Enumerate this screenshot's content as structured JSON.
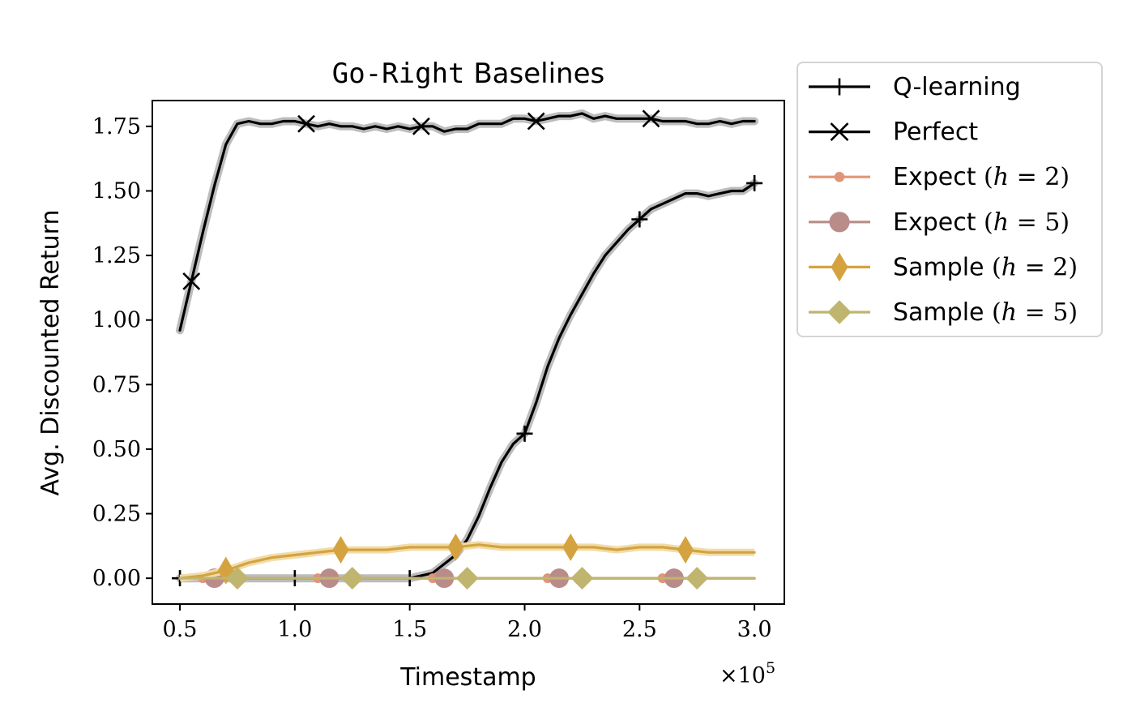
{
  "chart_data": {
    "type": "line",
    "title": {
      "code": "Go-Right",
      "rest": " Baselines"
    },
    "xlabel": "Timestamp",
    "ylabel": "Avg. Discounted Return",
    "x_multiplier": {
      "base": "×10",
      "exp": "5"
    },
    "xlim": [
      0.38,
      3.13
    ],
    "ylim": [
      -0.1,
      1.85
    ],
    "xticks": [
      0.5,
      1.0,
      1.5,
      2.0,
      2.5,
      3.0
    ],
    "xtick_labels": [
      "0.5",
      "1.0",
      "1.5",
      "2.0",
      "2.5",
      "3.0"
    ],
    "yticks": [
      0.0,
      0.25,
      0.5,
      0.75,
      1.0,
      1.25,
      1.5,
      1.75
    ],
    "ytick_labels": [
      "0.00",
      "0.25",
      "0.50",
      "0.75",
      "1.00",
      "1.25",
      "1.50",
      "1.75"
    ],
    "grid": false,
    "legend_position": "outside-top-right",
    "series": [
      {
        "name": "Q-learning",
        "color": "#000000",
        "marker": "plus",
        "x": [
          0.5,
          1.0,
          1.5,
          1.6,
          1.7,
          1.75,
          1.8,
          1.85,
          1.9,
          1.95,
          2.0,
          2.05,
          2.1,
          2.15,
          2.2,
          2.25,
          2.3,
          2.35,
          2.4,
          2.45,
          2.5,
          2.55,
          2.6,
          2.65,
          2.7,
          2.75,
          2.8,
          2.85,
          2.9,
          2.95,
          3.0
        ],
        "y": [
          0.0,
          0.0,
          0.0,
          0.02,
          0.09,
          0.15,
          0.24,
          0.35,
          0.45,
          0.52,
          0.56,
          0.68,
          0.82,
          0.93,
          1.02,
          1.1,
          1.18,
          1.25,
          1.3,
          1.35,
          1.39,
          1.43,
          1.45,
          1.47,
          1.49,
          1.49,
          1.48,
          1.49,
          1.5,
          1.5,
          1.53
        ],
        "marker_x": [
          0.5,
          1.0,
          1.5,
          2.0,
          2.5,
          3.0
        ]
      },
      {
        "name": "Perfect",
        "color": "#000000",
        "marker": "x",
        "x": [
          0.5,
          0.55,
          0.6,
          0.65,
          0.7,
          0.75,
          0.8,
          0.85,
          0.9,
          0.95,
          1.0,
          1.05,
          1.1,
          1.15,
          1.2,
          1.25,
          1.3,
          1.35,
          1.4,
          1.45,
          1.5,
          1.55,
          1.6,
          1.65,
          1.7,
          1.75,
          1.8,
          1.85,
          1.9,
          1.95,
          2.0,
          2.05,
          2.1,
          2.15,
          2.2,
          2.25,
          2.3,
          2.35,
          2.4,
          2.45,
          2.5,
          2.55,
          2.6,
          2.65,
          2.7,
          2.75,
          2.8,
          2.85,
          2.9,
          2.95,
          3.0
        ],
        "y": [
          0.96,
          1.15,
          1.34,
          1.52,
          1.68,
          1.76,
          1.77,
          1.76,
          1.76,
          1.77,
          1.77,
          1.76,
          1.75,
          1.76,
          1.75,
          1.75,
          1.74,
          1.75,
          1.74,
          1.75,
          1.74,
          1.75,
          1.75,
          1.73,
          1.74,
          1.74,
          1.76,
          1.76,
          1.76,
          1.78,
          1.78,
          1.77,
          1.78,
          1.79,
          1.79,
          1.8,
          1.78,
          1.79,
          1.78,
          1.78,
          1.78,
          1.78,
          1.77,
          1.77,
          1.77,
          1.76,
          1.76,
          1.77,
          1.76,
          1.77,
          1.77
        ],
        "marker_x": [
          0.55,
          1.05,
          1.55,
          2.05,
          2.55
        ]
      },
      {
        "name": "Expect",
        "h": "2",
        "color": "#e0957a",
        "marker": "small-circle",
        "x": [
          0.5,
          3.0
        ],
        "y": [
          0.0,
          0.0
        ],
        "marker_x": [
          0.6,
          1.1,
          1.6,
          2.1,
          2.6
        ]
      },
      {
        "name": "Expect",
        "h": "5",
        "color": "#b98c8a",
        "marker": "circle",
        "x": [
          0.5,
          3.0
        ],
        "y": [
          0.0,
          0.0
        ],
        "marker_x": [
          0.65,
          1.15,
          1.65,
          2.15,
          2.65
        ]
      },
      {
        "name": "Sample",
        "h": "2",
        "color": "#d4a33f",
        "marker": "thin-diamond",
        "x": [
          0.5,
          0.6,
          0.7,
          0.8,
          0.9,
          1.0,
          1.1,
          1.2,
          1.3,
          1.4,
          1.5,
          1.6,
          1.7,
          1.8,
          1.9,
          2.0,
          2.1,
          2.2,
          2.3,
          2.4,
          2.5,
          2.6,
          2.7,
          2.8,
          2.9,
          3.0
        ],
        "y": [
          0.0,
          0.01,
          0.03,
          0.06,
          0.08,
          0.09,
          0.1,
          0.11,
          0.11,
          0.11,
          0.12,
          0.12,
          0.12,
          0.13,
          0.12,
          0.12,
          0.12,
          0.12,
          0.12,
          0.11,
          0.12,
          0.12,
          0.11,
          0.1,
          0.1,
          0.1
        ],
        "marker_x": [
          0.7,
          1.2,
          1.7,
          2.2,
          2.7
        ]
      },
      {
        "name": "Sample",
        "h": "5",
        "color": "#bfb56f",
        "marker": "diamond",
        "x": [
          0.5,
          3.0
        ],
        "y": [
          0.0,
          0.0
        ],
        "marker_x": [
          0.75,
          1.25,
          1.75,
          2.25,
          2.75
        ]
      }
    ]
  }
}
